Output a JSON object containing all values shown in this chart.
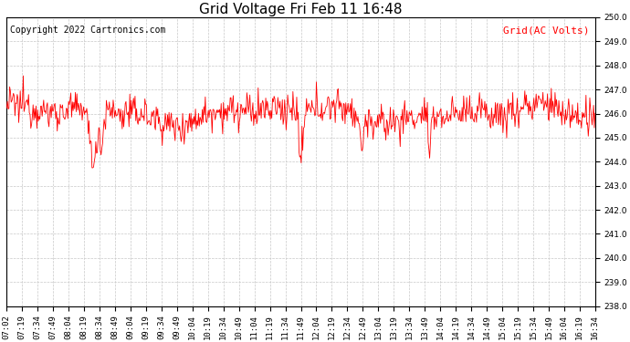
{
  "title": "Grid Voltage Fri Feb 11 16:48",
  "legend_label": "Grid(AC Volts)",
  "copyright_text": "Copyright 2022 Cartronics.com",
  "ylim": [
    238.0,
    250.0
  ],
  "yticks": [
    238.0,
    239.0,
    240.0,
    241.0,
    242.0,
    243.0,
    244.0,
    245.0,
    246.0,
    247.0,
    248.0,
    249.0,
    250.0
  ],
  "line_color": "red",
  "bg_color": "white",
  "grid_color": "#c8c8c8",
  "title_fontsize": 11,
  "copyright_fontsize": 7,
  "legend_fontsize": 8,
  "tick_fontsize": 6.5,
  "xtick_labels": [
    "07:02",
    "07:19",
    "07:34",
    "07:49",
    "08:04",
    "08:19",
    "08:34",
    "08:49",
    "09:04",
    "09:19",
    "09:34",
    "09:49",
    "10:04",
    "10:19",
    "10:34",
    "10:49",
    "11:04",
    "11:19",
    "11:34",
    "11:49",
    "12:04",
    "12:19",
    "12:34",
    "12:49",
    "13:04",
    "13:19",
    "13:34",
    "13:49",
    "14:04",
    "14:19",
    "14:34",
    "14:49",
    "15:04",
    "15:19",
    "15:34",
    "15:49",
    "16:04",
    "16:19",
    "16:34"
  ],
  "seed": 12345,
  "n_points": 780,
  "base_voltage": 246.0,
  "noise_std": 0.35
}
